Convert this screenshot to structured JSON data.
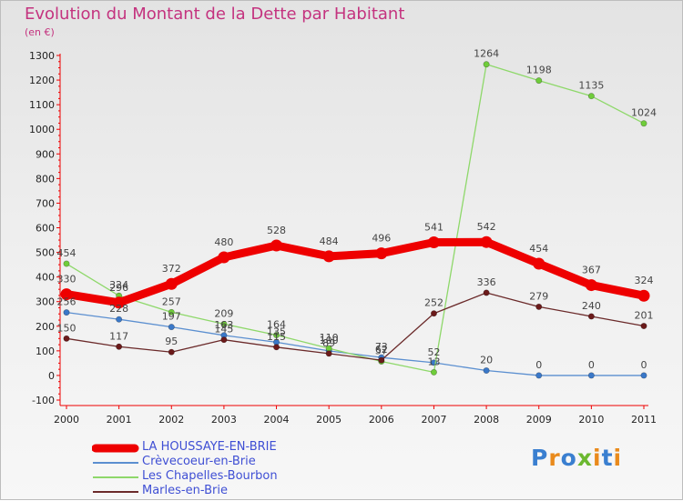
{
  "title": "Evolution du Montant de la Dette par Habitant",
  "subtitle": "(en €)",
  "logo": {
    "text": "Proxiti",
    "colors": [
      "#3a7fd0",
      "#e98a1c",
      "#3a7fd0",
      "#6bb82f",
      "#e98a1c",
      "#3a7fd0",
      "#e98a1c"
    ]
  },
  "chart_data": {
    "type": "line",
    "title": "Evolution du Montant de la Dette par Habitant",
    "subtitle": "(en €)",
    "x": [
      "2000",
      "2001",
      "2002",
      "2003",
      "2004",
      "2005",
      "2006",
      "2007",
      "2008",
      "2009",
      "2010",
      "2011"
    ],
    "ylim": [
      -100,
      1300
    ],
    "yticks": [
      -100,
      0,
      100,
      200,
      300,
      400,
      500,
      600,
      700,
      800,
      900,
      1000,
      1100,
      1200,
      1300
    ],
    "grid": false,
    "legend_position": "bottom-left",
    "series": [
      {
        "name": "LA HOUSSAYE-EN-BRIE",
        "color": "#ee0000",
        "emphasis": true,
        "values": [
          330,
          296,
          372,
          480,
          528,
          484,
          496,
          541,
          542,
          454,
          367,
          324
        ],
        "labels": [
          "330",
          "296",
          "372",
          "480",
          "528",
          "484",
          "496",
          "541",
          "542",
          "454",
          "367",
          "324"
        ]
      },
      {
        "name": "Crèvecoeur-en-Brie",
        "color": "#5b8fd0",
        "marker": "#3a78c8",
        "values": [
          256,
          228,
          197,
          163,
          135,
          100,
          73,
          52,
          20,
          0,
          0,
          0
        ],
        "labels": [
          "256",
          "228",
          "197",
          "163",
          "135",
          "100",
          "73",
          "52",
          "20",
          "0",
          "0",
          "0"
        ]
      },
      {
        "name": "Les Chapelles-Bourbon",
        "color": "#8ed86a",
        "marker": "#6fcc3a",
        "values": [
          454,
          324,
          257,
          209,
          164,
          110,
          57,
          13,
          1264,
          1198,
          1135,
          1024
        ],
        "labels": [
          "454",
          "324",
          "257",
          "209",
          "164",
          "110",
          "57",
          "13",
          "1264",
          "1198",
          "1135",
          "1024"
        ]
      },
      {
        "name": "Marles-en-Brie",
        "color": "#6b2a2a",
        "marker": "#6b1a1a",
        "values": [
          150,
          117,
          95,
          145,
          115,
          89,
          62,
          252,
          336,
          279,
          240,
          201
        ],
        "labels": [
          "150",
          "117",
          "95",
          "145",
          "115",
          "89",
          "62",
          "252",
          "336",
          "279",
          "240",
          "201"
        ]
      }
    ]
  }
}
